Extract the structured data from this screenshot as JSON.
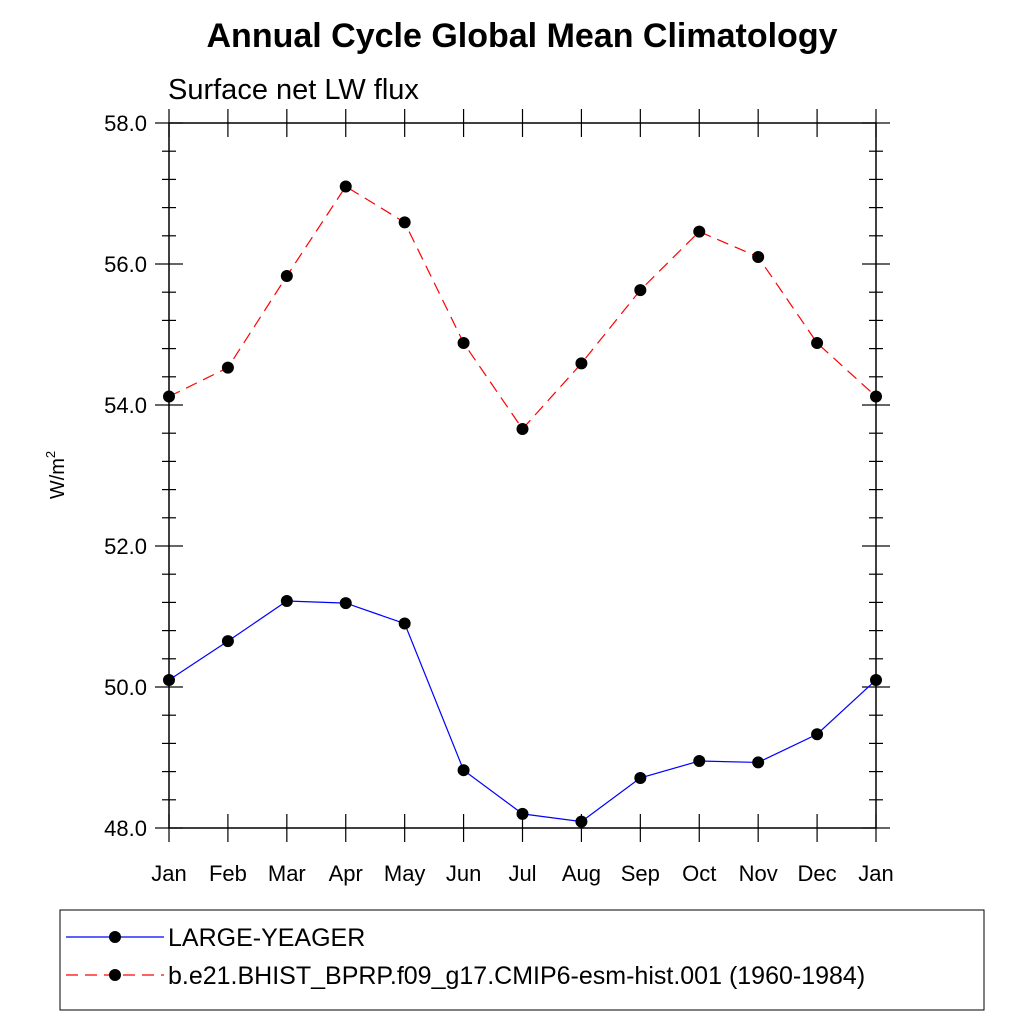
{
  "chart_data": {
    "type": "line",
    "title": "Annual Cycle Global Mean Climatology",
    "subtitle": "Surface net LW flux",
    "ylabel": "W/m",
    "ylabel_superscript": "2",
    "xlabel": "",
    "categories": [
      "Jan",
      "Feb",
      "Mar",
      "Apr",
      "May",
      "Jun",
      "Jul",
      "Aug",
      "Sep",
      "Oct",
      "Nov",
      "Dec",
      "Jan"
    ],
    "ylim": [
      48.0,
      58.0
    ],
    "yticks": [
      48.0,
      50.0,
      52.0,
      54.0,
      56.0,
      58.0
    ],
    "ytick_labels": [
      "48.0",
      "50.0",
      "52.0",
      "54.0",
      "56.0",
      "58.0"
    ],
    "legend_placement": "bottom",
    "grid": false,
    "series": [
      {
        "name": "LARGE-YEAGER",
        "color": "#0000ff",
        "line_style": "solid",
        "marker": "filled-circle",
        "values": [
          50.1,
          50.65,
          51.22,
          51.19,
          50.9,
          48.82,
          48.2,
          48.09,
          48.71,
          48.95,
          48.93,
          49.33,
          50.1
        ]
      },
      {
        "name": "b.e21.BHIST_BPRP.f09_g17.CMIP6-esm-hist.001 (1960-1984)",
        "color": "#ff0000",
        "line_style": "dashed",
        "marker": "filled-circle",
        "values": [
          54.12,
          54.53,
          55.83,
          57.1,
          56.59,
          54.88,
          53.66,
          54.59,
          55.63,
          56.46,
          56.1,
          54.88,
          54.12
        ]
      }
    ]
  }
}
